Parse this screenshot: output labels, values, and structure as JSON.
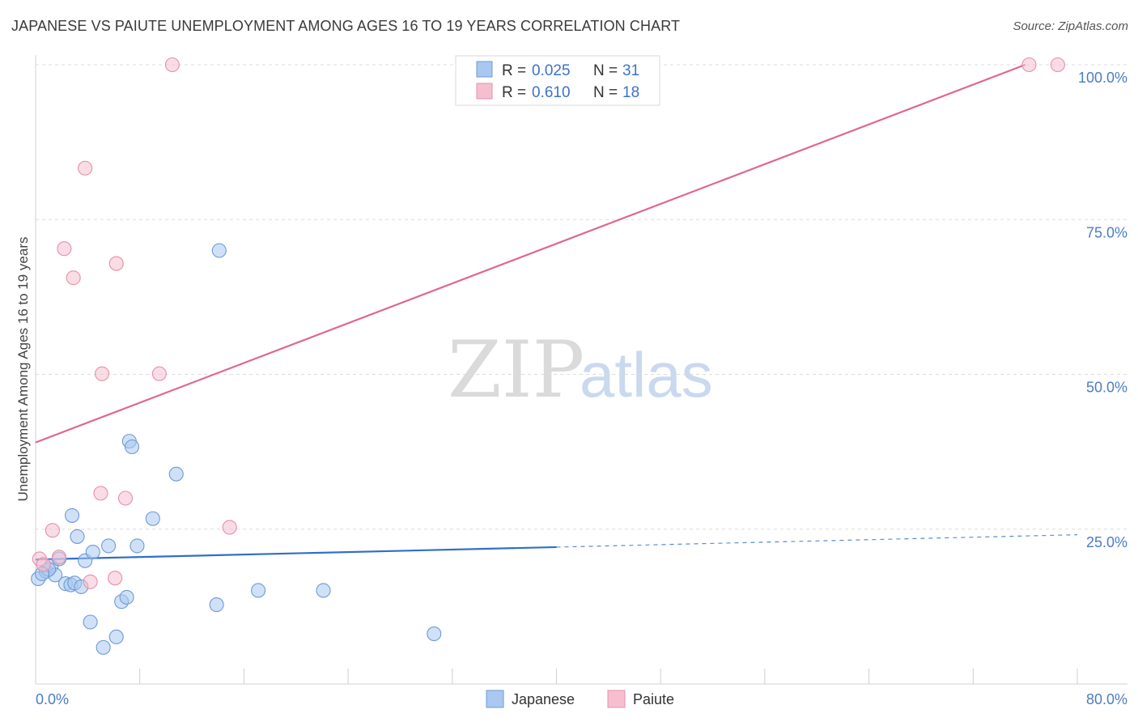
{
  "header": {
    "title": "JAPANESE VS PAIUTE UNEMPLOYMENT AMONG AGES 16 TO 19 YEARS CORRELATION CHART",
    "source": "Source: ZipAtlas.com"
  },
  "watermark": {
    "zip": "ZIP",
    "atlas": "atlas"
  },
  "legend": {
    "rows": [
      {
        "r_label": "R =",
        "r_value": "0.025",
        "n_label": "N =",
        "n_value": "31",
        "color": "#a9c8f0",
        "stroke": "#6d9ad6"
      },
      {
        "r_label": "R =",
        "r_value": "0.610",
        "n_label": "N =",
        "n_value": "18",
        "color": "#f6bfd0",
        "stroke": "#e590ab"
      }
    ]
  },
  "chart_data": {
    "type": "scatter",
    "title": "JAPANESE VS PAIUTE UNEMPLOYMENT AMONG AGES 16 TO 19 YEARS CORRELATION CHART",
    "xlabel": "",
    "ylabel": "Unemployment Among Ages 16 to 19 years",
    "xlim": [
      0,
      80
    ],
    "ylim": [
      0,
      100
    ],
    "x_tick_labels": [
      "0.0%",
      "80.0%"
    ],
    "y_tick_labels": [
      "25.0%",
      "50.0%",
      "75.0%",
      "100.0%"
    ],
    "y_tick_values": [
      25,
      50,
      75,
      100
    ],
    "series": [
      {
        "name": "Japanese",
        "color": "#a9c8f0",
        "stroke": "#6d9ad6",
        "line_color": "#2f6fca",
        "trend": {
          "x0": 0,
          "y0": 20.1,
          "x1": 40,
          "y1": 22.1,
          "dashed_to_x": 80,
          "dashed_to_y": 24.1
        },
        "points": [
          [
            0.2,
            17.0
          ],
          [
            0.8,
            18.2
          ],
          [
            1.2,
            19.0
          ],
          [
            1.5,
            17.6
          ],
          [
            1.8,
            20.2
          ],
          [
            2.3,
            16.2
          ],
          [
            2.7,
            16.0
          ],
          [
            2.8,
            27.2
          ],
          [
            3.0,
            16.3
          ],
          [
            3.2,
            23.8
          ],
          [
            3.5,
            15.7
          ],
          [
            3.8,
            19.9
          ],
          [
            4.2,
            10.0
          ],
          [
            4.4,
            21.3
          ],
          [
            5.2,
            5.9
          ],
          [
            5.6,
            22.3
          ],
          [
            6.2,
            7.6
          ],
          [
            6.6,
            13.3
          ],
          [
            7.0,
            14.0
          ],
          [
            7.2,
            39.2
          ],
          [
            7.4,
            38.3
          ],
          [
            7.8,
            22.3
          ],
          [
            9.0,
            26.7
          ],
          [
            10.8,
            33.9
          ],
          [
            13.9,
            12.8
          ],
          [
            14.1,
            70.0
          ],
          [
            17.1,
            15.1
          ],
          [
            22.1,
            15.1
          ],
          [
            30.6,
            8.1
          ],
          [
            1.0,
            18.5
          ],
          [
            0.5,
            17.8
          ]
        ]
      },
      {
        "name": "Paiute",
        "color": "#f6bfd0",
        "stroke": "#e590ab",
        "line_color": "#e0678e",
        "trend": {
          "x0": 0,
          "y0": 39.0,
          "x1": 76.0,
          "y1": 100.0
        },
        "points": [
          [
            0.3,
            20.2
          ],
          [
            0.6,
            19.3
          ],
          [
            1.3,
            24.8
          ],
          [
            1.8,
            20.5
          ],
          [
            2.2,
            70.3
          ],
          [
            2.9,
            65.6
          ],
          [
            3.8,
            83.3
          ],
          [
            4.2,
            16.5
          ],
          [
            5.0,
            30.8
          ],
          [
            5.1,
            50.1
          ],
          [
            6.1,
            17.1
          ],
          [
            6.2,
            67.9
          ],
          [
            6.9,
            30.0
          ],
          [
            9.5,
            50.1
          ],
          [
            10.5,
            100.0
          ],
          [
            14.9,
            25.3
          ],
          [
            76.3,
            100.0
          ],
          [
            78.5,
            100.0
          ]
        ]
      }
    ],
    "legend_position": "top-center",
    "grid": true
  }
}
